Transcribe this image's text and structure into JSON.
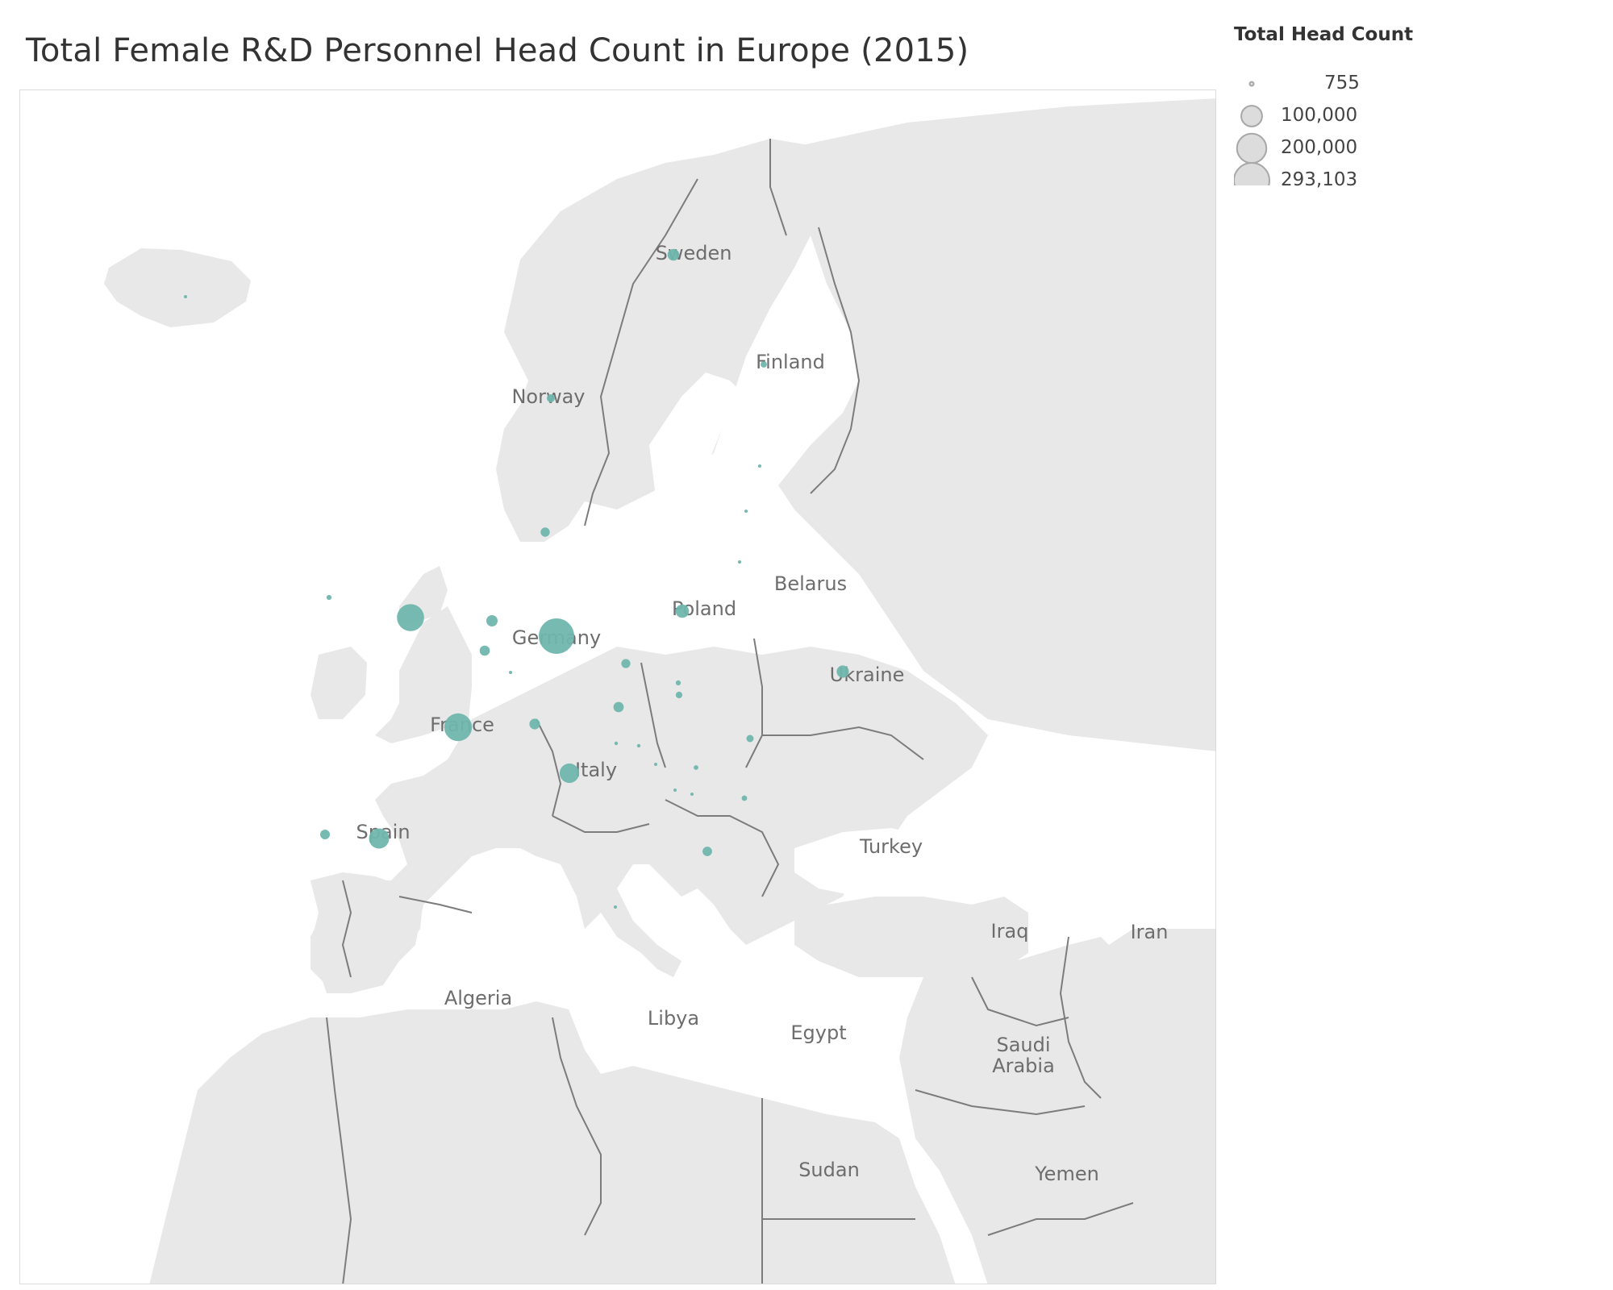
{
  "title": "Total Female R&D Personnel Head Count in Europe (2015)",
  "legend": {
    "title": "Total Head Count",
    "entries": [
      {
        "label": "755",
        "value": 755
      },
      {
        "label": "100,000",
        "value": 100000
      },
      {
        "label": "200,000",
        "value": 200000
      },
      {
        "label": "293,103",
        "value": 293103
      }
    ]
  },
  "colors": {
    "marker": "#6fb6ad",
    "land": "#e8e8e8",
    "land_light": "#efefef",
    "water": "#ffffff",
    "border": "#7c7c7c",
    "label": "#6d6d6d"
  },
  "map_labels": [
    "Sweden",
    "Finland",
    "Norway",
    "Belarus",
    "Poland",
    "Germany",
    "Ukraine",
    "France",
    "Italy",
    "Spain",
    "Turkey",
    "Iraq",
    "Iran",
    "Algeria",
    "Libya",
    "Egypt",
    "Saudi Arabia",
    "Sudan",
    "Yemen"
  ],
  "markers": [
    {
      "country": "Germany",
      "value": 293103
    },
    {
      "country": "France",
      "value": 180000
    },
    {
      "country": "United Kingdom",
      "value": 170000
    },
    {
      "country": "Spain",
      "value": 95000
    },
    {
      "country": "Italy",
      "value": 88000
    },
    {
      "country": "Poland",
      "value": 42000
    },
    {
      "country": "Ukraine",
      "value": 35000
    },
    {
      "country": "Sweden",
      "value": 32000
    },
    {
      "country": "Netherlands",
      "value": 30000
    },
    {
      "country": "Belgium",
      "value": 24000
    },
    {
      "country": "Portugal",
      "value": 22000
    },
    {
      "country": "Denmark",
      "value": 20000
    },
    {
      "country": "Austria",
      "value": 25000
    },
    {
      "country": "Switzerland",
      "value": 26000
    },
    {
      "country": "Czech Republic",
      "value": 19000
    },
    {
      "country": "Greece",
      "value": 21000
    },
    {
      "country": "Romania",
      "value": 12000
    },
    {
      "country": "Norway",
      "value": 15000
    },
    {
      "country": "Hungary",
      "value": 10000
    },
    {
      "country": "Finland",
      "value": 9000
    },
    {
      "country": "Bulgaria",
      "value": 7000
    },
    {
      "country": "Ireland",
      "value": 6000
    },
    {
      "country": "Slovakia",
      "value": 6000
    },
    {
      "country": "Serbia",
      "value": 5000
    },
    {
      "country": "Croatia",
      "value": 3000
    },
    {
      "country": "Slovenia",
      "value": 3000
    },
    {
      "country": "Lithuania",
      "value": 2600
    },
    {
      "country": "North Macedonia",
      "value": 1600
    },
    {
      "country": "Latvia",
      "value": 1500
    },
    {
      "country": "Estonia",
      "value": 1500
    },
    {
      "country": "Luxembourg",
      "value": 1200
    },
    {
      "country": "Bosnia and Herzegovina",
      "value": 1100
    },
    {
      "country": "Montenegro",
      "value": 900
    },
    {
      "country": "Iceland",
      "value": 900
    },
    {
      "country": "Malta",
      "value": 755
    }
  ]
}
